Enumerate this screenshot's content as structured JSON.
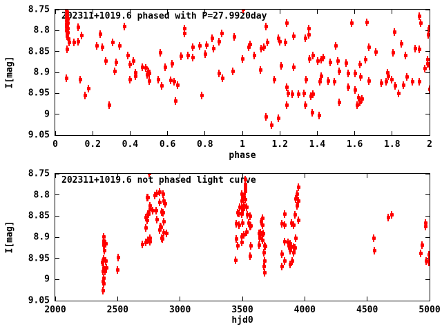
{
  "figure": {
    "background": "#ffffff",
    "marker_color": "#ff0000",
    "axis_color": "#000000"
  },
  "chart_data": [
    {
      "type": "scatter",
      "title": "202311+1019.6 phased with P=27.9920day",
      "xlabel": "phase",
      "ylabel": "I[mag]",
      "xlim": [
        0,
        2
      ],
      "ylim": [
        8.75,
        9.05
      ],
      "y_axis_inverted_magnitude": true,
      "grid": false,
      "legend": "none",
      "xticks": [
        0,
        0.2,
        0.4,
        0.6,
        0.8,
        1,
        1.2,
        1.4,
        1.6,
        1.8,
        2
      ],
      "xtick_labels": [
        "0",
        "0.2",
        "0.4",
        "0.6",
        "0.8",
        "1",
        "1.2",
        "1.4",
        "1.6",
        "1.8",
        "2"
      ],
      "yticks": [
        8.75,
        8.8,
        8.85,
        8.9,
        8.95,
        9,
        9.05
      ],
      "ytick_labels": [
        "8.75",
        "8.8",
        "8.85",
        "8.9",
        "8.95",
        "9",
        "9.05"
      ],
      "points": [
        [
          0.06,
          8.75
        ],
        [
          0.062,
          8.755
        ],
        [
          0.058,
          8.76
        ],
        [
          0.064,
          8.764
        ],
        [
          0.06,
          8.768
        ],
        [
          0.066,
          8.772
        ],
        [
          0.058,
          8.776
        ],
        [
          0.062,
          8.779
        ],
        [
          0.068,
          8.782
        ],
        [
          0.06,
          8.785
        ],
        [
          0.064,
          8.788
        ],
        [
          0.058,
          8.791
        ],
        [
          0.066,
          8.794
        ],
        [
          0.062,
          8.797
        ],
        [
          0.06,
          8.8
        ],
        [
          0.068,
          8.804
        ],
        [
          0.064,
          8.808
        ],
        [
          0.062,
          8.813
        ],
        [
          0.07,
          8.82
        ],
        [
          0.073,
          8.828
        ],
        [
          0.063,
          8.844
        ],
        [
          0.06,
          8.913
        ],
        [
          0.101,
          8.828
        ],
        [
          0.122,
          8.792
        ],
        [
          0.122,
          8.826
        ],
        [
          0.14,
          8.811
        ],
        [
          0.134,
          8.916
        ],
        [
          0.159,
          8.954
        ],
        [
          0.177,
          8.938
        ],
        [
          0.22,
          8.835
        ],
        [
          0.239,
          8.808
        ],
        [
          0.251,
          8.839
        ],
        [
          0.269,
          8.872
        ],
        [
          0.288,
          8.978
        ],
        [
          0.307,
          8.828
        ],
        [
          0.318,
          8.897
        ],
        [
          0.325,
          8.875
        ],
        [
          0.344,
          8.835
        ],
        [
          0.368,
          8.79
        ],
        [
          0.387,
          8.858
        ],
        [
          0.398,
          8.88
        ],
        [
          0.398,
          8.916
        ],
        [
          0.417,
          8.872
        ],
        [
          0.429,
          8.9
        ],
        [
          0.429,
          8.908
        ],
        [
          0.466,
          8.886
        ],
        [
          0.485,
          8.889
        ],
        [
          0.491,
          8.905
        ],
        [
          0.497,
          8.897
        ],
        [
          0.501,
          8.902
        ],
        [
          0.503,
          8.919
        ],
        [
          0.549,
          8.916
        ],
        [
          0.562,
          8.853
        ],
        [
          0.568,
          8.932
        ],
        [
          0.586,
          8.886
        ],
        [
          0.616,
          8.918
        ],
        [
          0.623,
          8.878
        ],
        [
          0.635,
          8.921
        ],
        [
          0.642,
          8.968
        ],
        [
          0.654,
          8.929
        ],
        [
          0.673,
          8.861
        ],
        [
          0.691,
          8.795
        ],
        [
          0.691,
          8.806
        ],
        [
          0.71,
          8.858
        ],
        [
          0.734,
          8.839
        ],
        [
          0.734,
          8.864
        ],
        [
          0.771,
          8.836
        ],
        [
          0.783,
          8.954
        ],
        [
          0.802,
          8.856
        ],
        [
          0.808,
          8.834
        ],
        [
          0.839,
          8.817
        ],
        [
          0.845,
          8.842
        ],
        [
          0.876,
          8.825
        ],
        [
          0.876,
          8.902
        ],
        [
          0.888,
          8.806
        ],
        [
          0.894,
          8.913
        ],
        [
          0.95,
          8.897
        ],
        [
          0.956,
          8.815
        ],
        [
          0.999,
          8.867
        ],
        [
          1.004,
          8.748
        ],
        [
          1.033,
          8.839
        ],
        [
          1.04,
          8.832
        ],
        [
          1.064,
          8.858
        ],
        [
          1.095,
          8.894
        ],
        [
          1.101,
          8.842
        ],
        [
          1.113,
          8.839
        ],
        [
          1.125,
          8.79
        ],
        [
          1.125,
          9.006
        ],
        [
          1.132,
          8.828
        ],
        [
          1.156,
          9.025
        ],
        [
          1.168,
          8.916
        ],
        [
          1.193,
          8.817
        ],
        [
          1.193,
          9.008
        ],
        [
          1.199,
          8.825
        ],
        [
          1.205,
          8.884
        ],
        [
          1.23,
          8.828
        ],
        [
          1.236,
          8.781
        ],
        [
          1.236,
          8.935
        ],
        [
          1.236,
          8.978
        ],
        [
          1.242,
          8.949
        ],
        [
          1.267,
          8.951
        ],
        [
          1.273,
          8.812
        ],
        [
          1.273,
          8.887
        ],
        [
          1.298,
          8.951
        ],
        [
          1.328,
          8.949
        ],
        [
          1.335,
          8.817
        ],
        [
          1.335,
          8.978
        ],
        [
          1.34,
          8.916
        ],
        [
          1.353,
          8.795
        ],
        [
          1.353,
          8.809
        ],
        [
          1.359,
          8.867
        ],
        [
          1.365,
          8.956
        ],
        [
          1.372,
          8.995
        ],
        [
          1.377,
          8.951
        ],
        [
          1.378,
          8.858
        ],
        [
          1.402,
          8.872
        ],
        [
          1.408,
          9.003
        ],
        [
          1.414,
          8.921
        ],
        [
          1.42,
          8.869
        ],
        [
          1.42,
          8.908
        ],
        [
          1.432,
          8.864
        ],
        [
          1.457,
          8.919
        ],
        [
          1.47,
          8.875
        ],
        [
          1.497,
          8.835
        ],
        [
          1.491,
          8.921
        ],
        [
          1.509,
          8.872
        ],
        [
          1.515,
          8.897
        ],
        [
          1.515,
          8.971
        ],
        [
          1.553,
          8.877
        ],
        [
          1.565,
          8.902
        ],
        [
          1.565,
          8.935
        ],
        [
          1.583,
          8.781
        ],
        [
          1.601,
          8.902
        ],
        [
          1.601,
          8.941
        ],
        [
          1.613,
          8.978
        ],
        [
          1.62,
          8.96
        ],
        [
          1.626,
          8.88
        ],
        [
          1.626,
          8.971
        ],
        [
          1.632,
          8.91
        ],
        [
          1.638,
          8.963
        ],
        [
          1.657,
          8.869
        ],
        [
          1.663,
          8.779
        ],
        [
          1.675,
          8.839
        ],
        [
          1.675,
          8.919
        ],
        [
          1.712,
          8.85
        ],
        [
          1.743,
          8.924
        ],
        [
          1.767,
          8.921
        ],
        [
          1.774,
          8.9
        ],
        [
          1.78,
          8.908
        ],
        [
          1.798,
          8.916
        ],
        [
          1.804,
          8.853
        ],
        [
          1.811,
          8.803
        ],
        [
          1.817,
          8.932
        ],
        [
          1.835,
          8.949
        ],
        [
          1.848,
          8.831
        ],
        [
          1.86,
          8.93
        ],
        [
          1.872,
          8.858
        ],
        [
          1.878,
          8.91
        ],
        [
          1.907,
          8.922
        ],
        [
          1.921,
          8.842
        ],
        [
          1.944,
          8.921
        ],
        [
          1.946,
          8.765
        ],
        [
          1.946,
          8.844
        ],
        [
          1.951,
          8.781
        ],
        [
          1.975,
          8.89
        ],
        [
          1.99,
          8.868
        ],
        [
          1.99,
          8.878
        ],
        [
          1.993,
          8.81
        ],
        [
          1.995,
          8.795
        ],
        [
          1.999,
          8.94
        ],
        [
          2.0,
          8.884
        ]
      ]
    },
    {
      "type": "scatter",
      "title": "202311+1019.6 not phased light curve",
      "xlabel": "hjd0",
      "ylabel": "I[mag]",
      "xlim": [
        2000,
        5000
      ],
      "ylim": [
        8.75,
        9.05
      ],
      "y_axis_inverted_magnitude": true,
      "grid": false,
      "legend": "none",
      "xticks": [
        2000,
        2500,
        3000,
        3500,
        4000,
        4500,
        5000
      ],
      "xtick_labels": [
        "2000",
        "2500",
        "3000",
        "3500",
        "4000",
        "4500",
        "5000"
      ],
      "yticks": [
        8.75,
        8.8,
        8.85,
        8.9,
        8.95,
        9,
        9.05
      ],
      "ytick_labels": [
        "8.75",
        "8.8",
        "8.85",
        "8.9",
        "8.95",
        "9",
        "9.05"
      ],
      "points": [
        [
          2387,
          8.898
        ],
        [
          2386,
          8.908
        ],
        [
          2386,
          8.913
        ],
        [
          2386,
          8.918
        ],
        [
          2404,
          8.915
        ],
        [
          2395,
          8.931
        ],
        [
          2386,
          8.95
        ],
        [
          2376,
          8.958
        ],
        [
          2404,
          8.955
        ],
        [
          2386,
          8.972
        ],
        [
          2410,
          8.972
        ],
        [
          2381,
          8.98
        ],
        [
          2398,
          8.98
        ],
        [
          2386,
          8.996
        ],
        [
          2383,
          9.004
        ],
        [
          2385,
          9.009
        ],
        [
          2383,
          9.026
        ],
        [
          2505,
          8.947
        ],
        [
          2496,
          8.977
        ],
        [
          2736,
          8.806
        ],
        [
          2756,
          8.825
        ],
        [
          2756,
          8.833
        ],
        [
          2747,
          8.844
        ],
        [
          2727,
          8.852
        ],
        [
          2736,
          8.86
        ],
        [
          2727,
          8.877
        ],
        [
          2756,
          8.901
        ],
        [
          2727,
          8.912
        ],
        [
          2699,
          8.917
        ],
        [
          2751,
          8.749
        ],
        [
          2815,
          8.795
        ],
        [
          2834,
          8.792
        ],
        [
          2862,
          8.798
        ],
        [
          2797,
          8.801
        ],
        [
          2742,
          8.806
        ],
        [
          2871,
          8.814
        ],
        [
          2880,
          8.82
        ],
        [
          2834,
          8.817
        ],
        [
          2779,
          8.836
        ],
        [
          2806,
          8.836
        ],
        [
          2852,
          8.839
        ],
        [
          2862,
          8.841
        ],
        [
          2742,
          8.844
        ],
        [
          2815,
          8.858
        ],
        [
          2871,
          8.863
        ],
        [
          2843,
          8.874
        ],
        [
          2848,
          8.876
        ],
        [
          2834,
          8.882
        ],
        [
          2871,
          8.888
        ],
        [
          2889,
          8.89
        ],
        [
          2852,
          8.901
        ],
        [
          2857,
          8.903
        ],
        [
          2742,
          8.907
        ],
        [
          2760,
          8.909
        ],
        [
          3443,
          8.953
        ],
        [
          3452,
          8.868
        ],
        [
          3452,
          8.904
        ],
        [
          3461,
          8.841
        ],
        [
          3461,
          8.92
        ],
        [
          3470,
          8.843
        ],
        [
          3470,
          8.871
        ],
        [
          3479,
          8.828
        ],
        [
          3498,
          8.866
        ],
        [
          3507,
          8.809
        ],
        [
          3507,
          8.833
        ],
        [
          3522,
          8.763
        ],
        [
          3522,
          8.775
        ],
        [
          3520,
          8.78
        ],
        [
          3524,
          8.785
        ],
        [
          3522,
          8.79
        ],
        [
          3494,
          8.798
        ],
        [
          3513,
          8.803
        ],
        [
          3522,
          8.811
        ],
        [
          3494,
          8.814
        ],
        [
          3513,
          8.825
        ],
        [
          3531,
          8.828
        ],
        [
          3494,
          8.83
        ],
        [
          3494,
          8.844
        ],
        [
          3540,
          8.846
        ],
        [
          3559,
          8.849
        ],
        [
          3550,
          8.866
        ],
        [
          3559,
          8.874
        ],
        [
          3564,
          8.872
        ],
        [
          3531,
          8.887
        ],
        [
          3513,
          8.893
        ],
        [
          3494,
          8.898
        ],
        [
          3496,
          8.912
        ],
        [
          3568,
          8.92
        ],
        [
          3559,
          8.944
        ],
        [
          3661,
          8.855
        ],
        [
          3651,
          8.863
        ],
        [
          3661,
          8.871
        ],
        [
          3633,
          8.89
        ],
        [
          3642,
          8.888
        ],
        [
          3661,
          8.893
        ],
        [
          3667,
          8.89
        ],
        [
          3637,
          8.901
        ],
        [
          3661,
          8.907
        ],
        [
          3633,
          8.918
        ],
        [
          3679,
          8.92
        ],
        [
          3684,
          8.922
        ],
        [
          3670,
          8.936
        ],
        [
          3679,
          8.955
        ],
        [
          3670,
          8.969
        ],
        [
          3679,
          8.983
        ],
        [
          3817,
          8.868
        ],
        [
          3817,
          8.939
        ],
        [
          3817,
          8.969
        ],
        [
          3836,
          8.844
        ],
        [
          3836,
          8.871
        ],
        [
          3836,
          8.909
        ],
        [
          3836,
          8.955
        ],
        [
          3863,
          8.912
        ],
        [
          3872,
          8.92
        ],
        [
          3881,
          8.915
        ],
        [
          3881,
          8.931
        ],
        [
          3881,
          8.963
        ],
        [
          3891,
          8.866
        ],
        [
          3891,
          8.921
        ],
        [
          3900,
          8.955
        ],
        [
          3909,
          8.871
        ],
        [
          3909,
          8.923
        ],
        [
          3909,
          8.936
        ],
        [
          3918,
          8.925
        ],
        [
          3919,
          8.846
        ],
        [
          3928,
          8.809
        ],
        [
          3928,
          8.901
        ],
        [
          3937,
          8.798
        ],
        [
          3937,
          8.825
        ],
        [
          3946,
          8.781
        ],
        [
          3946,
          8.814
        ],
        [
          3946,
          8.86
        ],
        [
          4550,
          8.901
        ],
        [
          4559,
          8.931
        ],
        [
          4670,
          8.852
        ],
        [
          4697,
          8.846
        ],
        [
          4929,
          8.937
        ],
        [
          4938,
          8.918
        ],
        [
          4966,
          8.866
        ],
        [
          4966,
          8.874
        ],
        [
          4975,
          8.955
        ],
        [
          4994,
          8.94
        ],
        [
          4994,
          8.958
        ]
      ]
    }
  ]
}
